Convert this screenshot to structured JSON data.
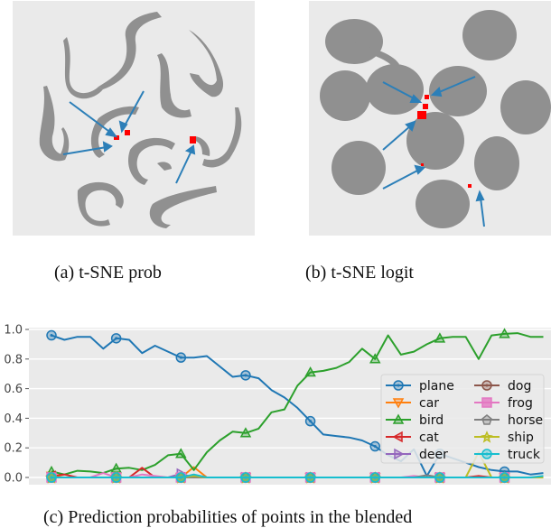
{
  "captions": {
    "a": "(a)  t-SNE prob",
    "b": "(b)  t-SNE logit",
    "c": "(c)  Prediction probabilities of points in the blended"
  },
  "colors": {
    "plane": "#1f77b4",
    "car": "#ff7f0e",
    "bird": "#2ca02c",
    "cat": "#d62728",
    "deer": "#9467bd",
    "dog": "#8c564b",
    "frog": "#e377c2",
    "horse": "#7f7f7f",
    "ship": "#bcbd22",
    "truck": "#17becf",
    "tsne_points": "#8c8c8c",
    "highlight": "#ff0000",
    "arrow": "#2c7fb8",
    "panel_bg": "#eaeaea"
  },
  "chart_data": [
    {
      "type": "scatter",
      "title": "(a) t-SNE prob",
      "description": "t-SNE embedding of softmax probabilities; 10 gray elongated clusters, red highlighted blended points near cluster boundaries, 4 blue arrows",
      "arrows": 4,
      "grid": false
    },
    {
      "type": "scatter",
      "title": "(b) t-SNE logit",
      "description": "t-SNE embedding of logits; 10 gray blob clusters, red highlighted blended points between clusters, 5 blue arrows",
      "arrows": 5,
      "grid": false
    },
    {
      "type": "line",
      "title": "(c) Prediction probabilities of points in the blended",
      "xlabel": "",
      "ylabel": "",
      "ylim": [
        0.0,
        1.0
      ],
      "yticks": [
        "0.0",
        "0.2",
        "0.4",
        "0.6",
        "0.8",
        "1.0"
      ],
      "grid": true,
      "legend_position": "center right",
      "marker_every": 5,
      "x": [
        0,
        1,
        2,
        3,
        4,
        5,
        6,
        7,
        8,
        9,
        10,
        11,
        12,
        13,
        14,
        15,
        16,
        17,
        18,
        19,
        20,
        21,
        22,
        23,
        24,
        25,
        26,
        27,
        28,
        29,
        30,
        31,
        32,
        33,
        34,
        35,
        36,
        37,
        38
      ],
      "series": [
        {
          "name": "plane",
          "marker": "circle",
          "values": [
            0.96,
            0.93,
            0.95,
            0.95,
            0.87,
            0.94,
            0.93,
            0.84,
            0.89,
            0.85,
            0.81,
            0.81,
            0.82,
            0.75,
            0.68,
            0.69,
            0.67,
            0.59,
            0.54,
            0.47,
            0.38,
            0.29,
            0.28,
            0.27,
            0.25,
            0.21,
            0.15,
            0.11,
            0.19,
            0.01,
            0.16,
            0.13,
            0.1,
            0.07,
            0.05,
            0.04,
            0.04,
            0.02,
            0.03
          ]
        },
        {
          "name": "car",
          "marker": "triangle-down",
          "values": [
            0.01,
            0.0,
            0.0,
            0.0,
            0.0,
            0.0,
            0.0,
            0.0,
            0.0,
            0.0,
            0.0,
            0.07,
            0.0,
            0.0,
            0.0,
            0.0,
            0.0,
            0.0,
            0.0,
            0.0,
            0.0,
            0.0,
            0.0,
            0.0,
            0.0,
            0.0,
            0.0,
            0.0,
            0.0,
            0.0,
            0.0,
            0.0,
            0.0,
            0.0,
            0.0,
            0.0,
            0.0,
            0.0,
            0.0
          ]
        },
        {
          "name": "bird",
          "marker": "triangle-up",
          "values": [
            0.04,
            0.02,
            0.045,
            0.04,
            0.03,
            0.06,
            0.065,
            0.05,
            0.085,
            0.15,
            0.16,
            0.05,
            0.17,
            0.25,
            0.31,
            0.3,
            0.33,
            0.44,
            0.46,
            0.62,
            0.71,
            0.72,
            0.74,
            0.78,
            0.87,
            0.8,
            0.96,
            0.83,
            0.85,
            0.9,
            0.94,
            0.95,
            0.95,
            0.8,
            0.96,
            0.97,
            0.975,
            0.95,
            0.95
          ]
        },
        {
          "name": "cat",
          "marker": "triangle-left",
          "values": [
            0.01,
            0.02,
            0.0,
            0.0,
            0.0,
            0.0,
            0.0,
            0.065,
            0.0,
            0.0,
            0.0,
            0.0,
            0.0,
            0.0,
            0.0,
            0.0,
            0.0,
            0.0,
            0.0,
            0.0,
            0.0,
            0.0,
            0.0,
            0.0,
            0.0,
            0.0,
            0.0,
            0.0,
            0.0,
            0.0,
            0.0,
            0.0,
            0.0,
            0.01,
            0.0,
            0.0,
            0.0,
            0.0,
            0.0
          ]
        },
        {
          "name": "deer",
          "marker": "triangle-right",
          "values": [
            0.0,
            0.0,
            0.0,
            0.0,
            0.0,
            0.0,
            0.0,
            0.0,
            0.0,
            0.0,
            0.025,
            0.0,
            0.0,
            0.0,
            0.0,
            0.0,
            0.0,
            0.0,
            0.0,
            0.0,
            0.0,
            0.0,
            0.0,
            0.0,
            0.0,
            0.0,
            0.0,
            0.0,
            0.0,
            0.0,
            0.0,
            0.0,
            0.0,
            0.0,
            0.0,
            0.0,
            0.0,
            0.0,
            0.0
          ]
        },
        {
          "name": "dog",
          "marker": "circle",
          "values": [
            0,
            0,
            0,
            0,
            0,
            0,
            0,
            0,
            0,
            0,
            0,
            0,
            0,
            0,
            0,
            0,
            0,
            0,
            0,
            0,
            0,
            0,
            0,
            0,
            0,
            0,
            0,
            0,
            0,
            0,
            0,
            0,
            0,
            0,
            0,
            0,
            0,
            0,
            0
          ]
        },
        {
          "name": "frog",
          "marker": "square",
          "values": [
            0.0,
            0.0,
            0.0,
            0.0,
            0.03,
            0.0,
            0.0,
            0.02,
            0.01,
            0.0,
            0.0,
            0.0,
            0.0,
            0.0,
            0.0,
            0.0,
            0.0,
            0.0,
            0.0,
            0.0,
            0.0,
            0.0,
            0.0,
            0.0,
            0.0,
            0.0,
            0.0,
            0.0,
            0.01,
            0.0,
            0.0,
            0.0,
            0.0,
            0.0,
            0.0,
            0.0,
            0.0,
            0.0,
            0.0
          ]
        },
        {
          "name": "horse",
          "marker": "pentagon",
          "values": [
            0,
            0,
            0,
            0,
            0,
            0,
            0,
            0,
            0,
            0,
            0,
            0,
            0,
            0,
            0,
            0,
            0,
            0,
            0,
            0,
            0,
            0,
            0,
            0,
            0,
            0,
            0,
            0,
            0,
            0.015,
            0,
            0,
            0,
            0,
            0,
            0,
            0,
            0,
            0
          ]
        },
        {
          "name": "ship",
          "marker": "star",
          "values": [
            0.0,
            0.0,
            0.0,
            0.0,
            0.0,
            0.0,
            0.0,
            0.0,
            0.0,
            0.0,
            0.0,
            0.01,
            0.0,
            0.0,
            0.0,
            0.0,
            0.0,
            0.0,
            0.0,
            0.0,
            0.0,
            0.0,
            0.0,
            0.0,
            0.0,
            0.0,
            0.0,
            0.0,
            0.0,
            0.0,
            0.0,
            0.0,
            0.0,
            0.17,
            0.0,
            0.0,
            0.0,
            0.0,
            0.0
          ]
        },
        {
          "name": "truck",
          "marker": "circle",
          "values": [
            0.0,
            0.0,
            0.0,
            0.0,
            0.0,
            0.0,
            0.0,
            0.0,
            0.0,
            0.0,
            0.0,
            0.02,
            0.0,
            0.0,
            0.0,
            0.0,
            0.0,
            0.0,
            0.0,
            0.0,
            0.0,
            0.0,
            0.0,
            0.0,
            0.0,
            0.0,
            0.0,
            0.0,
            0.0,
            0.0,
            0.0,
            0.0,
            0.0,
            0.0,
            0.0,
            0.0,
            0.0,
            0.0,
            0.01
          ]
        }
      ],
      "legend": {
        "entries": [
          "plane",
          "car",
          "bird",
          "cat",
          "deer",
          "dog",
          "frog",
          "horse",
          "ship",
          "truck"
        ],
        "columns": 2
      }
    }
  ]
}
